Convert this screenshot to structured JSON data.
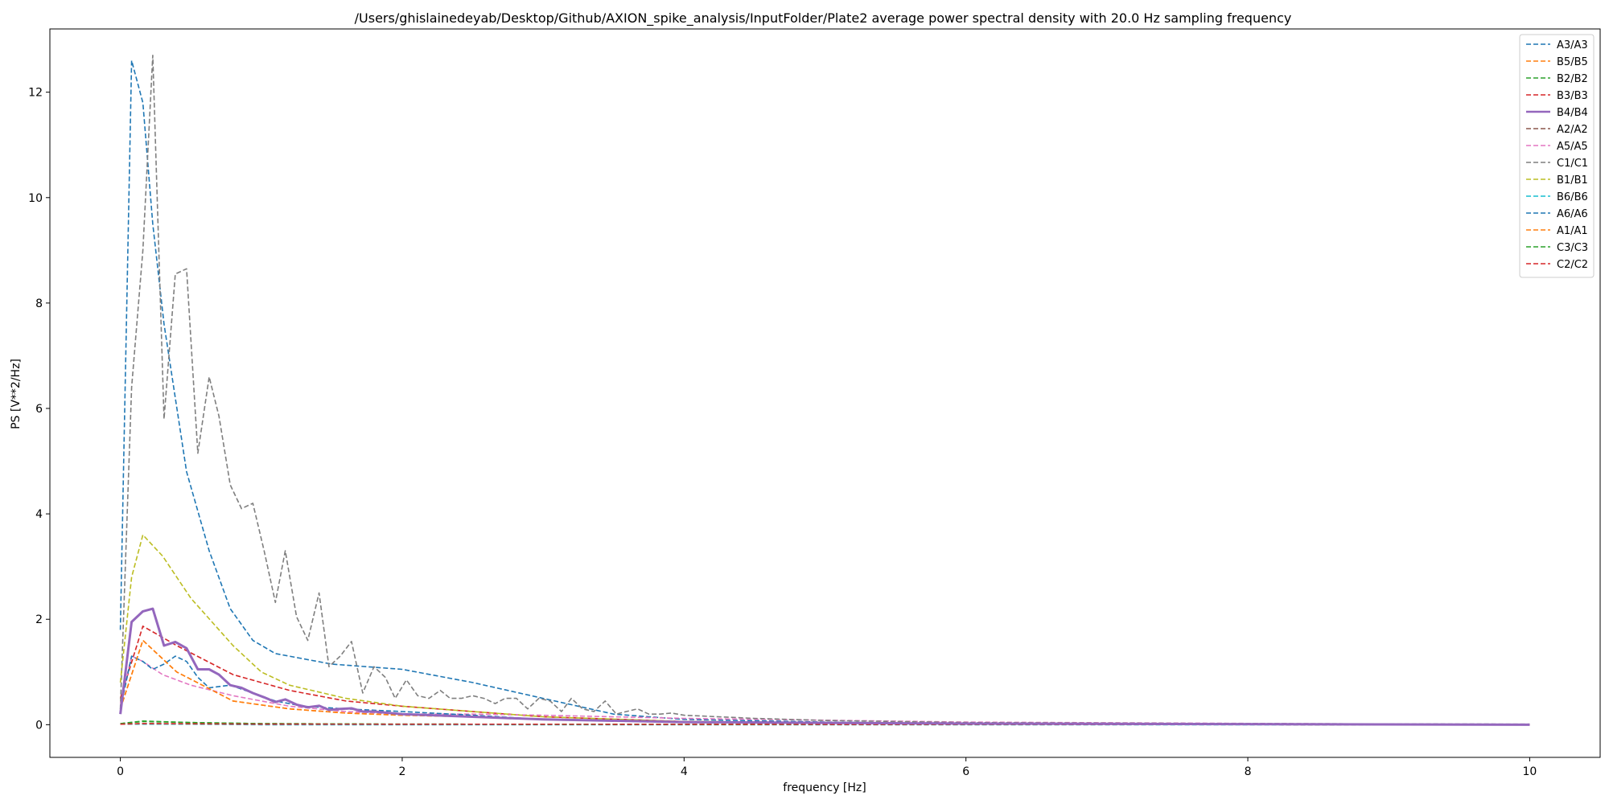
{
  "chart_data": {
    "type": "line",
    "title": "/Users/ghislainedeyab/Desktop/Github/AXION_spike_analysis/InputFolder/Plate2 average power spectral density with 20.0 Hz sampling frequency",
    "xlabel": "frequency [Hz]",
    "ylabel": "PS [V**2/Hz]",
    "xlim": [
      -0.5,
      10.5
    ],
    "ylim": [
      -0.62,
      13.2
    ],
    "xticks": [
      0,
      2,
      4,
      6,
      8,
      10
    ],
    "yticks": [
      0,
      2,
      4,
      6,
      8,
      10,
      12
    ],
    "grid": false,
    "legend_position": "top-right",
    "series": [
      {
        "name": "A3/A3",
        "color": "#1f77b4",
        "dash": true,
        "x": [
          0,
          0.08,
          0.16,
          0.23,
          0.31,
          0.47,
          0.63,
          0.78,
          0.94,
          1.1,
          1.5,
          2.0,
          2.5,
          3.0,
          3.5,
          4.0,
          5.0,
          6.0,
          8.0,
          10.0
        ],
        "y": [
          1.8,
          12.6,
          11.8,
          9.5,
          7.6,
          4.8,
          3.3,
          2.2,
          1.6,
          1.35,
          1.15,
          1.05,
          0.8,
          0.5,
          0.2,
          0.1,
          0.05,
          0.02,
          0.01,
          0.0
        ]
      },
      {
        "name": "B5/B5",
        "color": "#ff7f0e",
        "dash": true,
        "x": [
          0,
          0.16,
          0.4,
          0.8,
          1.2,
          1.6,
          2.0,
          2.5,
          3.0,
          4.0,
          6.0,
          10.0
        ],
        "y": [
          0.3,
          1.6,
          1.0,
          0.45,
          0.3,
          0.22,
          0.18,
          0.15,
          0.1,
          0.05,
          0.02,
          0.0
        ]
      },
      {
        "name": "B2/B2",
        "color": "#2ca02c",
        "dash": true,
        "x": [
          0,
          0.16,
          0.5,
          1.0,
          2.0,
          10.0
        ],
        "y": [
          0.02,
          0.07,
          0.04,
          0.02,
          0.01,
          0.0
        ]
      },
      {
        "name": "B3/B3",
        "color": "#d62728",
        "dash": true,
        "x": [
          0,
          0.16,
          0.4,
          0.8,
          1.2,
          1.6,
          2.0,
          2.5,
          3.0,
          4.0,
          6.0,
          10.0
        ],
        "y": [
          0.5,
          1.87,
          1.5,
          0.95,
          0.65,
          0.45,
          0.35,
          0.25,
          0.15,
          0.06,
          0.02,
          0.0
        ]
      },
      {
        "name": "B4/B4",
        "color": "#9467bd",
        "dash": false,
        "width": 3,
        "x": [
          0,
          0.08,
          0.16,
          0.23,
          0.31,
          0.39,
          0.47,
          0.55,
          0.63,
          0.7,
          0.78,
          0.86,
          0.94,
          1.02,
          1.1,
          1.17,
          1.25,
          1.33,
          1.41,
          1.48,
          1.56,
          1.64,
          1.72,
          1.8,
          2.0,
          2.5,
          3.0,
          4.0,
          6.0,
          10.0
        ],
        "y": [
          0.2,
          1.95,
          2.15,
          2.2,
          1.5,
          1.57,
          1.45,
          1.05,
          1.05,
          0.95,
          0.75,
          0.7,
          0.6,
          0.52,
          0.43,
          0.48,
          0.38,
          0.33,
          0.36,
          0.28,
          0.3,
          0.31,
          0.25,
          0.25,
          0.2,
          0.15,
          0.1,
          0.05,
          0.02,
          0.0
        ]
      },
      {
        "name": "A2/A2",
        "color": "#8c564b",
        "dash": true,
        "x": [
          0,
          0.16,
          1.0,
          10.0
        ],
        "y": [
          0.01,
          0.02,
          0.01,
          0.0
        ]
      },
      {
        "name": "A5/A5",
        "color": "#e377c2",
        "dash": true,
        "x": [
          0,
          0.08,
          0.16,
          0.3,
          0.5,
          0.8,
          1.2,
          1.6,
          2.0,
          2.5,
          3.0,
          4.0,
          6.0,
          10.0
        ],
        "y": [
          0.4,
          1.3,
          1.2,
          0.95,
          0.75,
          0.55,
          0.35,
          0.25,
          0.2,
          0.2,
          0.18,
          0.12,
          0.05,
          0.0
        ]
      },
      {
        "name": "C1/C1",
        "color": "#7f7f7f",
        "dash": true,
        "x": [
          0,
          0.08,
          0.16,
          0.23,
          0.31,
          0.39,
          0.47,
          0.55,
          0.63,
          0.7,
          0.78,
          0.86,
          0.94,
          1.02,
          1.1,
          1.17,
          1.25,
          1.33,
          1.41,
          1.48,
          1.56,
          1.64,
          1.72,
          1.8,
          1.88,
          1.95,
          2.03,
          2.11,
          2.19,
          2.27,
          2.34,
          2.42,
          2.5,
          2.58,
          2.66,
          2.73,
          2.81,
          2.89,
          2.97,
          3.05,
          3.13,
          3.2,
          3.28,
          3.36,
          3.44,
          3.52,
          3.59,
          3.67,
          3.75,
          3.83,
          3.91,
          4.0,
          4.5,
          5.0,
          6.0,
          8.0,
          10.0
        ],
        "y": [
          0.3,
          6.4,
          9.0,
          12.7,
          5.8,
          8.55,
          8.65,
          5.15,
          6.6,
          5.85,
          4.55,
          4.1,
          4.2,
          3.3,
          2.32,
          3.3,
          2.05,
          1.6,
          2.5,
          1.1,
          1.3,
          1.58,
          0.6,
          1.1,
          0.9,
          0.5,
          0.85,
          0.55,
          0.5,
          0.65,
          0.5,
          0.5,
          0.55,
          0.5,
          0.4,
          0.5,
          0.5,
          0.3,
          0.5,
          0.45,
          0.25,
          0.5,
          0.3,
          0.25,
          0.45,
          0.2,
          0.25,
          0.3,
          0.2,
          0.2,
          0.22,
          0.18,
          0.12,
          0.08,
          0.04,
          0.02,
          0.01
        ]
      },
      {
        "name": "B1/B1",
        "color": "#bcbd22",
        "dash": true,
        "x": [
          0,
          0.08,
          0.16,
          0.3,
          0.5,
          0.8,
          1.0,
          1.2,
          1.6,
          2.0,
          2.5,
          3.0,
          4.0,
          6.0,
          10.0
        ],
        "y": [
          0.8,
          2.8,
          3.6,
          3.2,
          2.4,
          1.5,
          1.0,
          0.75,
          0.5,
          0.35,
          0.25,
          0.15,
          0.06,
          0.02,
          0.0
        ]
      },
      {
        "name": "B6/B6",
        "color": "#17becf",
        "dash": true,
        "x": [
          0,
          0.5,
          1.0,
          10.0
        ],
        "y": [
          0.01,
          0.01,
          0.0,
          0.0
        ]
      },
      {
        "name": "A6/A6",
        "color": "#1f77b4",
        "dash": true,
        "x": [
          0,
          0.08,
          0.16,
          0.23,
          0.31,
          0.39,
          0.47,
          0.55,
          0.63,
          0.78,
          0.94,
          1.1,
          1.3,
          1.6,
          2.0,
          2.5,
          3.0,
          4.0,
          6.0,
          10.0
        ],
        "y": [
          0.3,
          1.3,
          1.2,
          1.05,
          1.15,
          1.3,
          1.2,
          0.9,
          0.7,
          0.75,
          0.6,
          0.45,
          0.35,
          0.3,
          0.25,
          0.18,
          0.1,
          0.05,
          0.02,
          0.0
        ]
      },
      {
        "name": "A1/A1",
        "color": "#ff7f0e",
        "dash": true,
        "x": [
          0,
          0.16,
          0.4,
          0.8,
          1.2,
          1.6,
          2.0,
          2.5,
          3.0,
          4.0,
          6.0,
          10.0
        ],
        "y": [
          0.3,
          1.6,
          1.0,
          0.45,
          0.3,
          0.22,
          0.18,
          0.15,
          0.1,
          0.05,
          0.02,
          0.0
        ]
      },
      {
        "name": "C3/C3",
        "color": "#2ca02c",
        "dash": true,
        "x": [
          0,
          0.16,
          0.5,
          1.0,
          2.0,
          10.0
        ],
        "y": [
          0.02,
          0.06,
          0.04,
          0.02,
          0.01,
          0.0
        ]
      },
      {
        "name": "C2/C2",
        "color": "#d62728",
        "dash": true,
        "x": [
          0,
          0.16,
          1.0,
          10.0
        ],
        "y": [
          0.01,
          0.02,
          0.01,
          0.0
        ]
      }
    ]
  }
}
